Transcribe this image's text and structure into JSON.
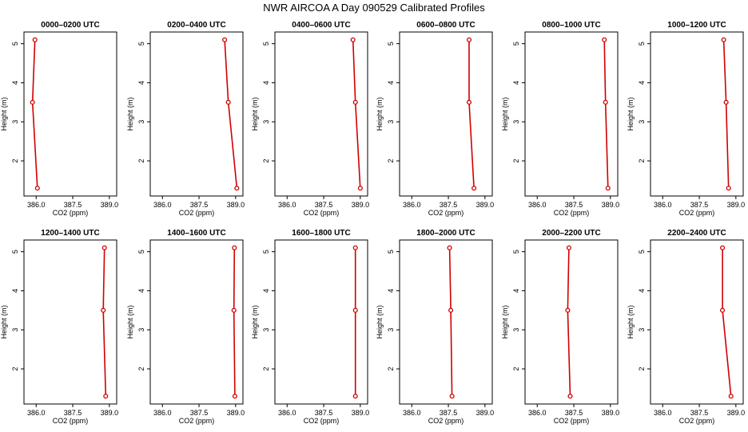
{
  "title": "NWR AIRCOA A  Day 090529  Calibrated Profiles",
  "chart_data": {
    "type": "line",
    "layout": "small-multiples 2 rows x 6 columns",
    "xlabel": "CO2 (ppm)",
    "ylabel": "Height (m)",
    "xlim": [
      385.5,
      389.3
    ],
    "ylim": [
      1.1,
      5.3
    ],
    "xticks": [
      "386.0",
      "387.5",
      "389.0"
    ],
    "yticks": [
      "2",
      "3",
      "4",
      "5"
    ],
    "heights": [
      5.1,
      3.5,
      1.3
    ],
    "panels": [
      {
        "title": "0000–0200 UTC",
        "co2": [
          385.95,
          385.85,
          386.05
        ]
      },
      {
        "title": "0200–0400 UTC",
        "co2": [
          388.55,
          388.7,
          389.05
        ]
      },
      {
        "title": "0400–0600 UTC",
        "co2": [
          388.7,
          388.8,
          389.0
        ]
      },
      {
        "title": "0600–0800 UTC",
        "co2": [
          388.35,
          388.35,
          388.55
        ]
      },
      {
        "title": "0800–1000 UTC",
        "co2": [
          388.75,
          388.8,
          388.9
        ]
      },
      {
        "title": "1000–1200 UTC",
        "co2": [
          388.5,
          388.6,
          388.7
        ]
      },
      {
        "title": "1200–1400 UTC",
        "co2": [
          388.8,
          388.75,
          388.85
        ]
      },
      {
        "title": "1400–1600 UTC",
        "co2": [
          388.95,
          388.93,
          388.97
        ]
      },
      {
        "title": "1600–1800 UTC",
        "co2": [
          388.8,
          388.8,
          388.8
        ]
      },
      {
        "title": "1800–2000 UTC",
        "co2": [
          387.55,
          387.6,
          387.65
        ]
      },
      {
        "title": "2000–2200 UTC",
        "co2": [
          387.3,
          387.25,
          387.35
        ]
      },
      {
        "title": "2200–2400 UTC",
        "co2": [
          388.45,
          388.45,
          388.8
        ]
      }
    ],
    "colors": {
      "series": "#d00000",
      "axis": "#000000"
    },
    "grid": false,
    "marker": "open-circle"
  }
}
